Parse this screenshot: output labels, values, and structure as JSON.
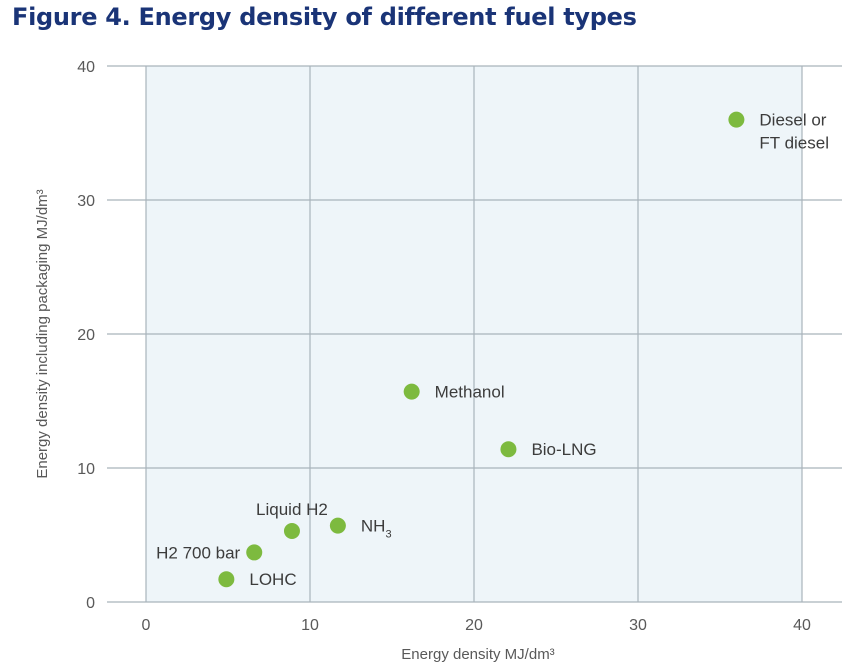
{
  "title": "Figure 4. Energy density of different fuel types",
  "chart_data": {
    "type": "scatter",
    "title": "Figure 4. Energy density of different fuel types",
    "xlabel": "Energy density MJ/dm³",
    "ylabel": "Energy density including packaging MJ/dm³",
    "xlim": [
      0,
      40
    ],
    "ylim": [
      0,
      40
    ],
    "xticks": [
      "0",
      "10",
      "20",
      "30",
      "40"
    ],
    "yticks": [
      "0",
      "10",
      "20",
      "30",
      "40"
    ],
    "grid": true,
    "marker_color": "#7dba3f",
    "plot_background": "#eef5f9",
    "grid_color": "#a9b3bb",
    "points": [
      {
        "label": "LOHC",
        "x": 4.9,
        "y": 1.7
      },
      {
        "label": "H2 700 bar",
        "x": 6.6,
        "y": 3.7
      },
      {
        "label": "Liquid H2",
        "x": 8.9,
        "y": 5.3
      },
      {
        "label": "NH",
        "label_sub": "3",
        "x": 11.7,
        "y": 5.7
      },
      {
        "label": "Methanol",
        "x": 16.2,
        "y": 15.7
      },
      {
        "label": "Bio-LNG",
        "x": 22.1,
        "y": 11.4
      },
      {
        "label": "Diesel or",
        "label2": "FT diesel",
        "x": 36.0,
        "y": 36.0
      }
    ]
  }
}
